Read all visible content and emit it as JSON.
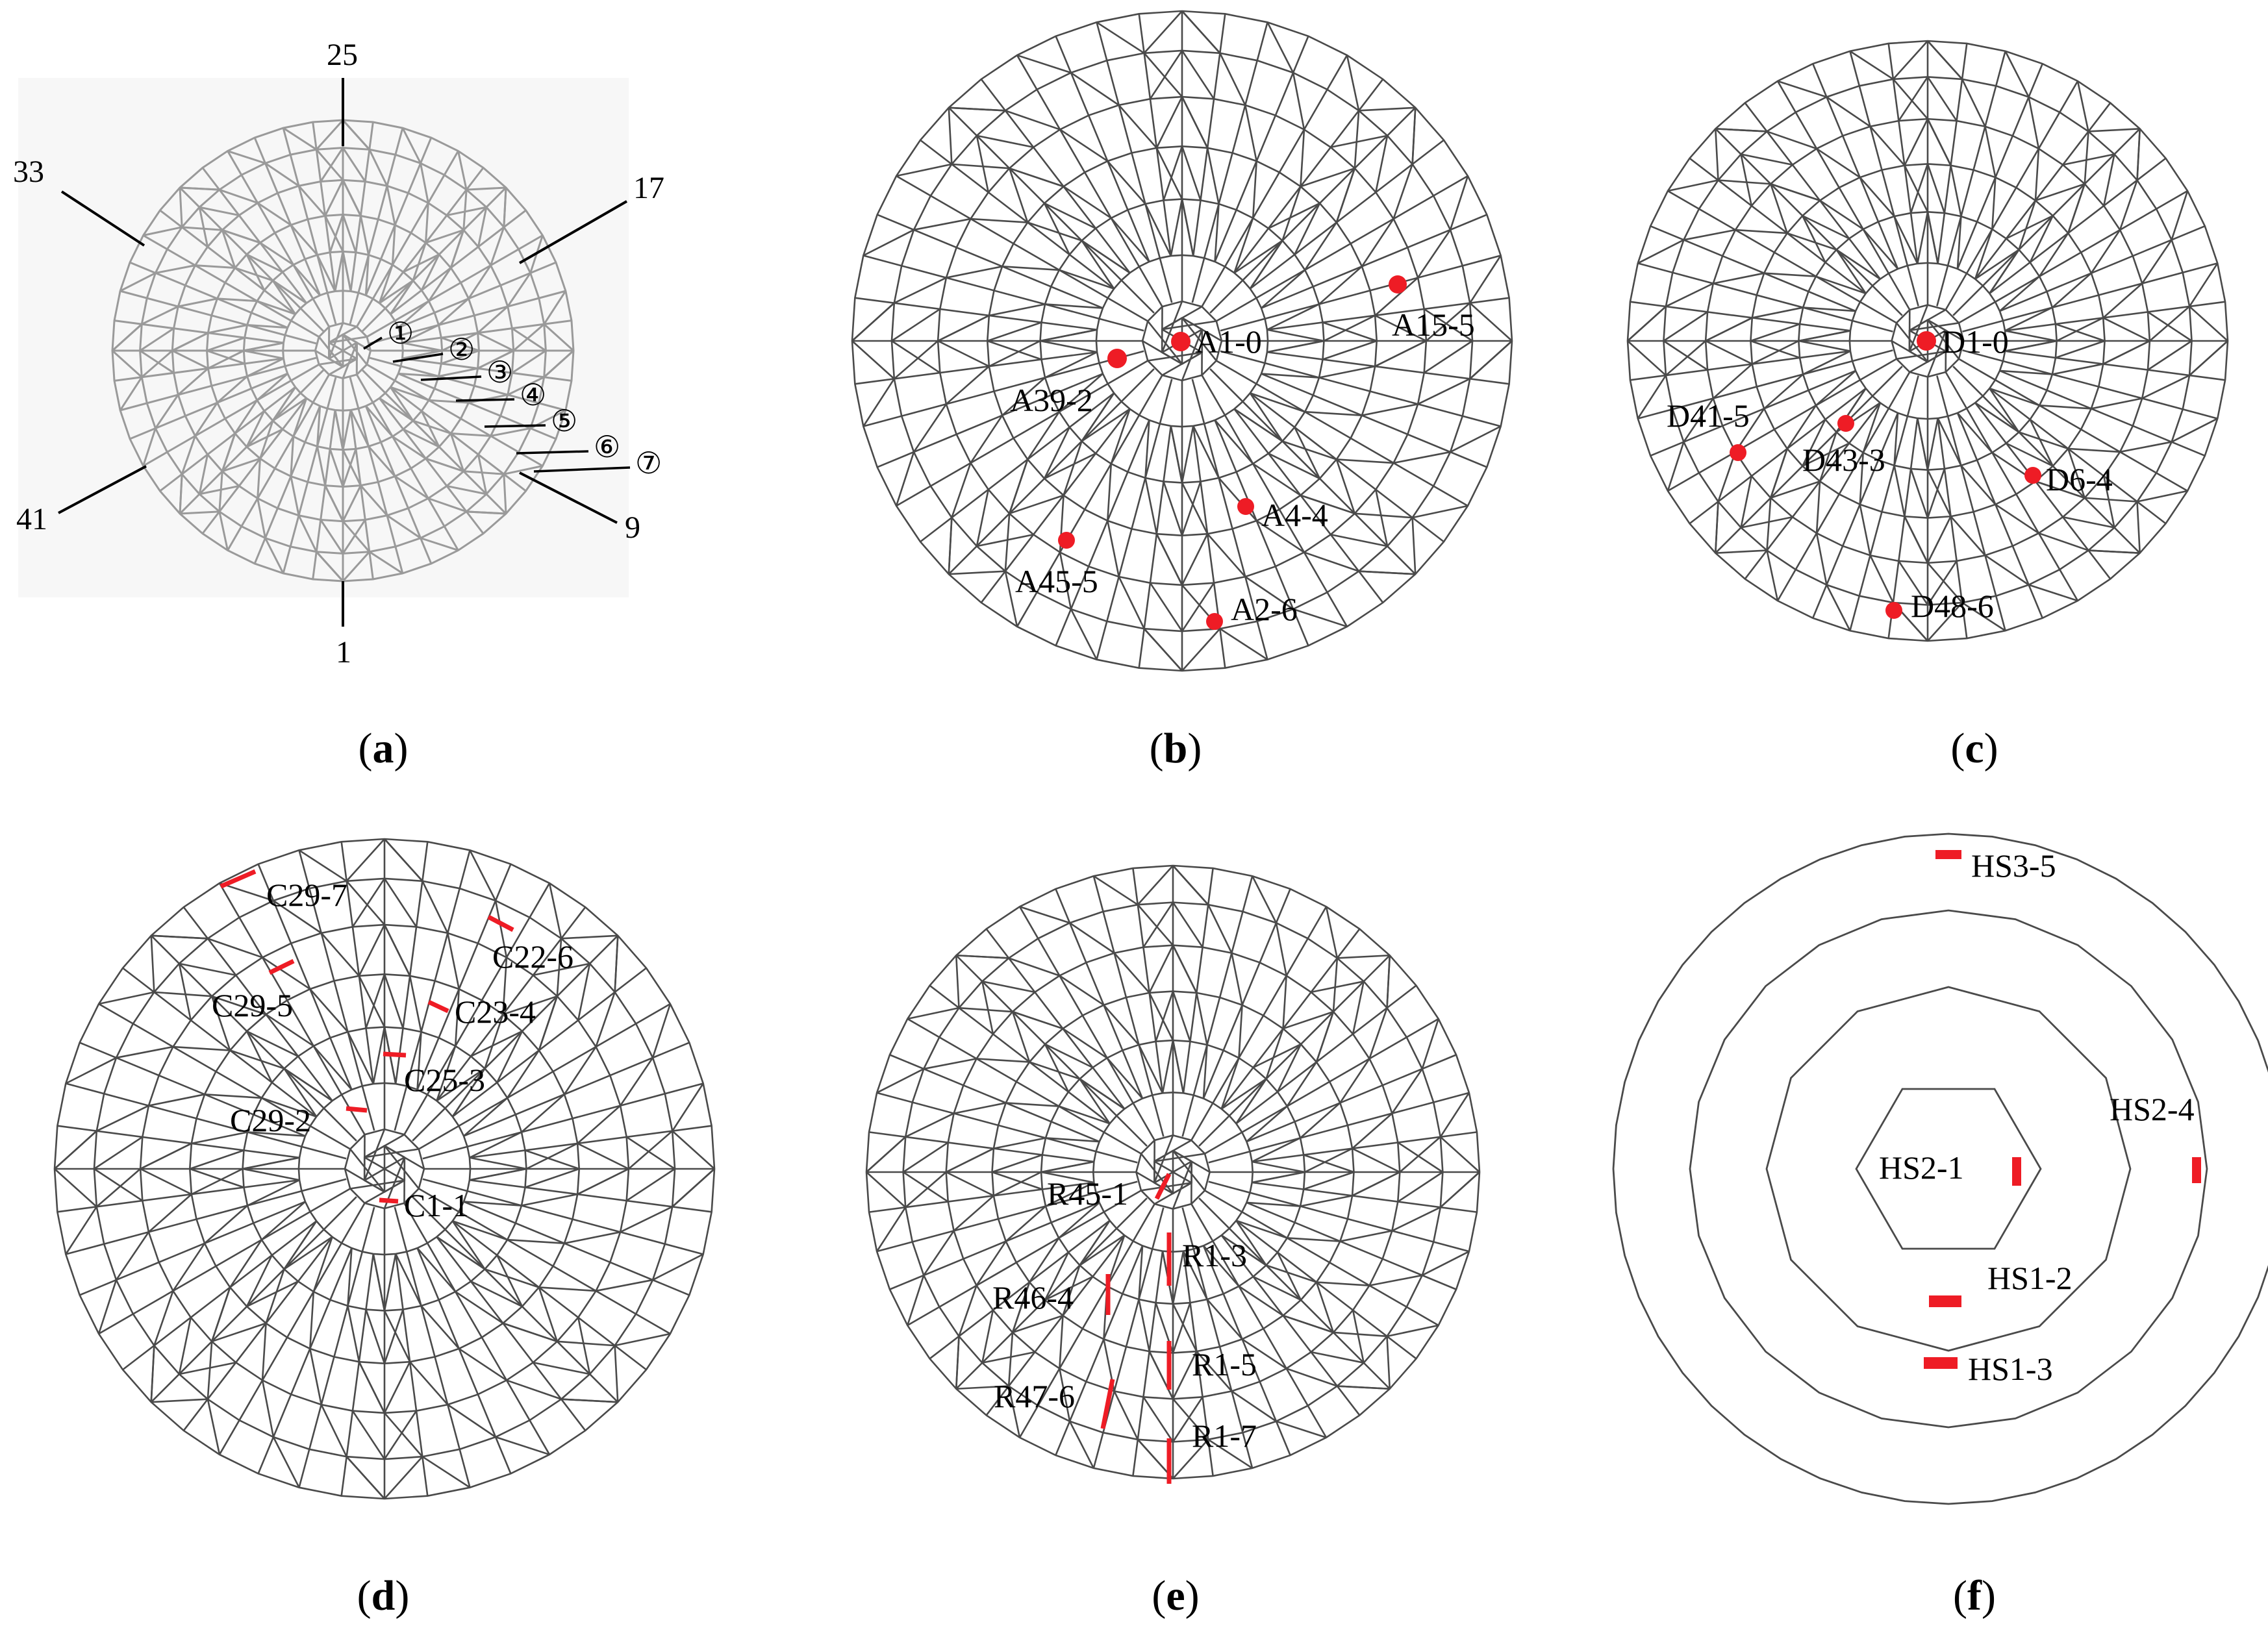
{
  "colors": {
    "line": "#4a4a4a",
    "grid_a": "#9a9a9a",
    "marker": "#ee1c25"
  },
  "panels": [
    {
      "id": "a",
      "caption": "a",
      "labels": [
        "25",
        "17",
        "33",
        "41",
        "9",
        "1"
      ],
      "ring_labels": [
        "①",
        "②",
        "③",
        "④",
        "⑤",
        "⑥",
        "⑦"
      ]
    },
    {
      "id": "b",
      "caption": "b",
      "labels": [
        "A1-0",
        "A15-5",
        "A39-2",
        "A4-4",
        "A45-5",
        "A2-6"
      ]
    },
    {
      "id": "c",
      "caption": "c",
      "labels": [
        "D1-0",
        "D41-5",
        "D43-3",
        "D6-4",
        "D48-6"
      ]
    },
    {
      "id": "d",
      "caption": "d",
      "labels": [
        "C29-7",
        "C22-6",
        "C29-5",
        "C23-4",
        "C25-3",
        "C29-2",
        "C1-1"
      ]
    },
    {
      "id": "e",
      "caption": "e",
      "labels": [
        "R45-1",
        "R1-3",
        "R46-4",
        "R1-5",
        "R47-6",
        "R1-7"
      ]
    },
    {
      "id": "f",
      "caption": "f",
      "labels": [
        "HS3-5",
        "HS2-4",
        "HS2-1",
        "HS1-2",
        "HS1-3"
      ]
    }
  ]
}
